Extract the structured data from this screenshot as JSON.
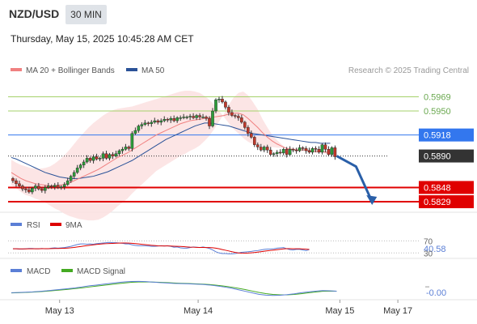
{
  "header": {
    "symbol": "NZD/USD",
    "timeframe": "30 MIN",
    "datetime": "Thursday, May 15, 2025 10:45:28 AM CET"
  },
  "legend": {
    "ma20": "MA 20 + Bollinger Bands",
    "ma50": "MA 50",
    "copyright": "Research © 2025 Trading Central",
    "colors": {
      "ma20": "#f08080",
      "ma50": "#2a5298",
      "band": "#fbe0e0"
    }
  },
  "chart_data": {
    "type": "candlestick",
    "ylim": [
      0.5815,
      0.599
    ],
    "levels": [
      {
        "value": 0.5969,
        "label": "0.5969",
        "color": "#a6d16b",
        "style": "plain"
      },
      {
        "value": 0.595,
        "label": "0.5950",
        "color": "#a6d16b",
        "style": "plain"
      },
      {
        "value": 0.5918,
        "label": "0.5918",
        "color": "#3377ee",
        "style": "box"
      },
      {
        "value": 0.589,
        "label": "0.5890",
        "color": "#333333",
        "style": "box"
      },
      {
        "value": 0.5848,
        "label": "0.5848",
        "color": "#e00000",
        "style": "box"
      },
      {
        "value": 0.5829,
        "label": "0.5829",
        "color": "#e00000",
        "style": "box"
      }
    ],
    "close": [
      0.5857,
      0.5853,
      0.585,
      0.5846,
      0.5845,
      0.5842,
      0.5847,
      0.585,
      0.5846,
      0.5844,
      0.5848,
      0.585,
      0.5849,
      0.5851,
      0.5848,
      0.5849,
      0.5852,
      0.5857,
      0.5863,
      0.5868,
      0.5874,
      0.5878,
      0.5882,
      0.5887,
      0.5884,
      0.5889,
      0.5886,
      0.5887,
      0.5893,
      0.5887,
      0.5892,
      0.589,
      0.5893,
      0.5897,
      0.5899,
      0.5902,
      0.59,
      0.592,
      0.5924,
      0.593,
      0.5932,
      0.5934,
      0.5933,
      0.5935,
      0.5937,
      0.5935,
      0.5937,
      0.5939,
      0.5938,
      0.594,
      0.5937,
      0.5941,
      0.5941,
      0.5942,
      0.5942,
      0.5943,
      0.5941,
      0.5944,
      0.5942,
      0.5942,
      0.594,
      0.593,
      0.595,
      0.5965,
      0.5966,
      0.5962,
      0.5955,
      0.5948,
      0.5944,
      0.5943,
      0.5941,
      0.5935,
      0.5928,
      0.592,
      0.5915,
      0.5905,
      0.5902,
      0.5898,
      0.5902,
      0.5898,
      0.5892,
      0.5893,
      0.5895,
      0.5894,
      0.5899,
      0.5892,
      0.5899,
      0.5898,
      0.5897,
      0.5901,
      0.59,
      0.5897,
      0.5895,
      0.59,
      0.5899,
      0.5895,
      0.5905,
      0.5899,
      0.5892,
      0.5901,
      0.5889
    ],
    "ma20": [
      0.5868,
      0.5864,
      0.586,
      0.5857,
      0.5855,
      0.5853,
      0.5852,
      0.5851,
      0.585,
      0.585,
      0.5851,
      0.5852,
      0.5854,
      0.5857,
      0.586,
      0.5863,
      0.5866,
      0.5869,
      0.5872,
      0.5876,
      0.588,
      0.5884,
      0.5888,
      0.5891,
      0.5894,
      0.5898,
      0.5902,
      0.5906,
      0.591,
      0.5914,
      0.5918,
      0.5921,
      0.5924,
      0.5927,
      0.593,
      0.5933,
      0.5935,
      0.5937,
      0.5938,
      0.5939,
      0.594,
      0.5941,
      0.5942,
      0.5943,
      0.5944,
      0.5946,
      0.5947,
      0.5947,
      0.5945,
      0.594,
      0.5934,
      0.5928,
      0.5921,
      0.5915,
      0.591,
      0.5906,
      0.5903,
      0.59,
      0.5899,
      0.5898,
      0.5898,
      0.5898,
      0.5897,
      0.5896,
      0.5896,
      0.5895,
      0.5895
    ],
    "ma20_start": 0,
    "band_upper": [
      0.5885,
      0.5881,
      0.5878,
      0.5876,
      0.5874,
      0.5873,
      0.5873,
      0.5874,
      0.5876,
      0.588,
      0.5885,
      0.5891,
      0.5898,
      0.5906,
      0.5914,
      0.5921,
      0.5928,
      0.5934,
      0.5939,
      0.5944,
      0.5948,
      0.5951,
      0.5953,
      0.5954,
      0.5955,
      0.5956,
      0.5958,
      0.596,
      0.5962,
      0.5964,
      0.5966,
      0.5968,
      0.597,
      0.5972,
      0.5974,
      0.5976,
      0.5977,
      0.5977,
      0.5976,
      0.5974,
      0.597,
      0.5965,
      0.5958,
      0.595,
      0.5942,
      0.5934,
      0.5926,
      0.592,
      0.5914,
      0.5909,
      0.5906,
      0.5904,
      0.5903,
      0.5902,
      0.5902,
      0.5901,
      0.5901,
      0.5901,
      0.5901,
      0.59,
      0.5899,
      0.5899,
      0.5898,
      0.5898,
      0.5897,
      0.5897,
      0.5897
    ],
    "band_lower": [
      0.5851,
      0.5847,
      0.5842,
      0.5838,
      0.5836,
      0.5833,
      0.5831,
      0.5828,
      0.5824,
      0.582,
      0.5817,
      0.5813,
      0.581,
      0.5808,
      0.5806,
      0.5805,
      0.5804,
      0.5804,
      0.5805,
      0.5808,
      0.5812,
      0.5817,
      0.5823,
      0.5828,
      0.5833,
      0.584,
      0.5846,
      0.5852,
      0.5858,
      0.5864,
      0.587,
      0.5874,
      0.5878,
      0.5882,
      0.5886,
      0.589,
      0.5893,
      0.5897,
      0.59,
      0.5904,
      0.591,
      0.5917,
      0.5926,
      0.5936,
      0.5946,
      0.5958,
      0.5968,
      0.5974,
      0.5976,
      0.5971,
      0.5962,
      0.5952,
      0.5939,
      0.5928,
      0.5918,
      0.5911,
      0.5905,
      0.5899,
      0.5897,
      0.5896,
      0.5897,
      0.5897,
      0.5896,
      0.5894,
      0.5895,
      0.5893,
      0.5893
    ],
    "ma50": [
      0.5888,
      0.5886,
      0.5883,
      0.588,
      0.5877,
      0.5874,
      0.5871,
      0.5868,
      0.5866,
      0.5864,
      0.5862,
      0.5861,
      0.586,
      0.586,
      0.586,
      0.5861,
      0.5862,
      0.5863,
      0.5865,
      0.5867,
      0.5869,
      0.5872,
      0.5875,
      0.5878,
      0.5881,
      0.5884,
      0.5888,
      0.5892,
      0.5896,
      0.59,
      0.5904,
      0.5908,
      0.5912,
      0.5915,
      0.5918,
      0.5921,
      0.5924,
      0.5927,
      0.593,
      0.5932,
      0.5934,
      0.5934,
      0.5933,
      0.5932,
      0.5931,
      0.593,
      0.5928,
      0.5926,
      0.5924,
      0.5922,
      0.592,
      0.5919,
      0.5918,
      0.5917,
      0.5916,
      0.5915,
      0.5914,
      0.5913,
      0.5912,
      0.5911,
      0.591,
      0.5909,
      0.5908,
      0.5908,
      0.5907,
      0.5907,
      0.5907
    ],
    "forecast": [
      {
        "x": 101,
        "y": 0.589
      },
      {
        "x": 107,
        "y": 0.5876
      },
      {
        "x": 112,
        "y": 0.5829
      }
    ],
    "x_labels": [
      {
        "text": "May 13",
        "x": 15
      },
      {
        "text": "May 14",
        "x": 58
      },
      {
        "text": "May 15",
        "x": 102
      },
      {
        "text": "May 17",
        "x": 120
      }
    ],
    "x_domain": [
      -1,
      127
    ],
    "rsi": {
      "label": "RSI",
      "signal_label": "9MA",
      "levels": [
        {
          "value": 70,
          "label": "70"
        },
        {
          "value": 30,
          "label": "30"
        }
      ],
      "current": "40.58",
      "ylim": [
        20,
        90
      ],
      "values": [
        44,
        44,
        43,
        43,
        44,
        45,
        45,
        44,
        44,
        45,
        44,
        44,
        46,
        47,
        46,
        47,
        48,
        50,
        52,
        55,
        58,
        60,
        60,
        59,
        60,
        59,
        61,
        62,
        63,
        64,
        65,
        64,
        64,
        63,
        62,
        60,
        60,
        57,
        55,
        54,
        54,
        54,
        53,
        52,
        52,
        53,
        54,
        53,
        54,
        52,
        49,
        50,
        47,
        46,
        46,
        48,
        50,
        49,
        48,
        50,
        48,
        45,
        40,
        34,
        30,
        28,
        28,
        27,
        27,
        28,
        30,
        32,
        33,
        34,
        35,
        37,
        38,
        40,
        42,
        43,
        43,
        44,
        46,
        47,
        48,
        44,
        41,
        40,
        42,
        42,
        40,
        38,
        41
      ]
    },
    "macd": {
      "label": "MACD",
      "signal_label": "MACD Signal",
      "current": "-0.00",
      "values": [
        -0.1,
        -0.08,
        -0.05,
        -0.02,
        0.03,
        0.08,
        0.15,
        0.22,
        0.28,
        0.35,
        0.45,
        0.55,
        0.62,
        0.7,
        0.78,
        0.85,
        0.92,
        0.96,
        0.97,
        0.95,
        0.9,
        0.85,
        0.82,
        0.78,
        0.76,
        0.74,
        0.71,
        0.68,
        0.63,
        0.55,
        0.45,
        0.35,
        0.2,
        0.05,
        -0.1,
        -0.25,
        -0.32,
        -0.35,
        -0.33,
        -0.28,
        -0.2,
        -0.1,
        -0.02,
        0.05,
        0.1,
        0.08,
        0.05
      ],
      "signal": [
        -0.12,
        -0.1,
        -0.07,
        -0.04,
        0.0,
        0.05,
        0.1,
        0.16,
        0.22,
        0.29,
        0.36,
        0.44,
        0.52,
        0.6,
        0.67,
        0.75,
        0.82,
        0.88,
        0.91,
        0.92,
        0.9,
        0.88,
        0.85,
        0.82,
        0.79,
        0.77,
        0.74,
        0.71,
        0.67,
        0.61,
        0.53,
        0.44,
        0.33,
        0.21,
        0.07,
        -0.07,
        -0.18,
        -0.26,
        -0.3,
        -0.3,
        -0.26,
        -0.19,
        -0.11,
        -0.03,
        0.04,
        0.06,
        0.05
      ],
      "ylim": [
        -0.6,
        1.3
      ]
    }
  }
}
